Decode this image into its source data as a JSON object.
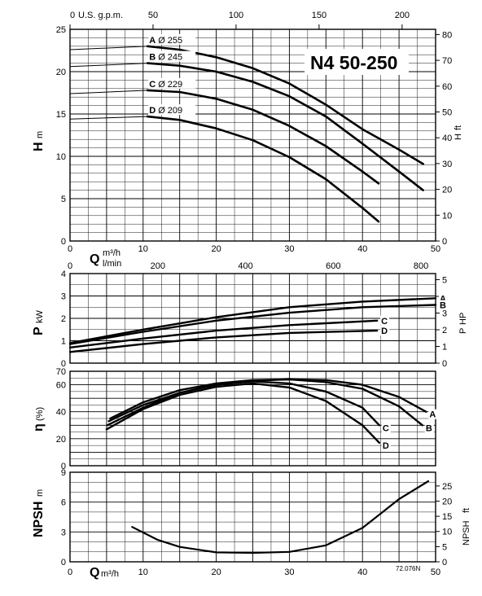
{
  "title": "N4 50-250",
  "code": "72.076N",
  "units": {
    "usgpm": "U.S. g.p.m.",
    "m3h": "m³/h",
    "lmin": "l/min",
    "H_left": "m",
    "H_right": "ft",
    "P_left": "kW",
    "P_right": "HP",
    "eta": "(%)",
    "npsh_left": "m",
    "npsh_right": "ft"
  },
  "labels": {
    "Q": "Q",
    "H": "H",
    "Hft": "H",
    "P": "P",
    "Php": "P",
    "eta": "η",
    "NPSH": "NPSH",
    "NPSHft": "NPSH"
  },
  "curve_labels": {
    "head": [
      {
        "letter": "A",
        "dia": "Ø 255"
      },
      {
        "letter": "B",
        "dia": "Ø 245"
      },
      {
        "letter": "C",
        "dia": "Ø 229"
      },
      {
        "letter": "D",
        "dia": "Ø 209"
      }
    ],
    "power": [
      "A",
      "B",
      "C",
      "D"
    ],
    "eff": [
      "A",
      "B",
      "C",
      "D"
    ]
  },
  "chart_data": [
    {
      "type": "line",
      "ylim": [
        0,
        25
      ],
      "xlim": [
        0,
        50
      ],
      "yticks": [
        "0",
        "5",
        "10",
        "15",
        "20",
        "25"
      ],
      "y2ticks": [
        "0",
        "10",
        "20",
        "30",
        "40",
        "50",
        "60",
        "70",
        "80"
      ],
      "xticks_gpm": [
        "0",
        "50",
        "100",
        "150",
        "200"
      ],
      "series": [
        {
          "name": "A",
          "x": [
            10.6,
            15,
            20,
            25,
            30,
            35,
            40,
            45,
            48.3
          ],
          "y": [
            23.0,
            22.6,
            21.7,
            20.4,
            18.6,
            16.1,
            13.2,
            10.8,
            9.1
          ]
        },
        {
          "name": "B",
          "x": [
            10.6,
            15,
            20,
            25,
            30,
            35,
            40,
            45,
            48.3
          ],
          "y": [
            21.0,
            20.7,
            20.0,
            18.8,
            17.1,
            14.7,
            11.5,
            8.2,
            6.0
          ]
        },
        {
          "name": "C",
          "x": [
            10.6,
            15,
            20,
            25,
            30,
            35,
            40,
            42.2
          ],
          "y": [
            17.8,
            17.6,
            16.8,
            15.5,
            13.6,
            11.2,
            8.2,
            6.8
          ]
        },
        {
          "name": "D",
          "x": [
            10.6,
            15,
            20,
            25,
            30,
            35,
            40,
            42.2
          ],
          "y": [
            14.7,
            14.3,
            13.3,
            11.9,
            9.9,
            7.3,
            3.9,
            2.3
          ]
        }
      ],
      "stubs": [
        {
          "x": [
            0,
            10.6
          ],
          "y": [
            22.6,
            23.0
          ]
        },
        {
          "x": [
            0,
            10.6
          ],
          "y": [
            20.6,
            21.0
          ]
        },
        {
          "x": [
            0,
            10.6
          ],
          "y": [
            17.4,
            17.8
          ]
        },
        {
          "x": [
            0,
            10.6
          ],
          "y": [
            14.4,
            14.7
          ]
        }
      ]
    },
    {
      "type": "line",
      "ylim": [
        0,
        4
      ],
      "xlim": [
        0,
        50
      ],
      "yticks": [
        "0",
        "1",
        "2",
        "3",
        "4"
      ],
      "y2ticks": [
        "0",
        "1",
        "2",
        "3",
        "4",
        "5"
      ],
      "xticks_lmin": [
        "0",
        "200",
        "400",
        "600",
        "800"
      ],
      "series": [
        {
          "name": "A",
          "x": [
            0,
            10,
            20,
            30,
            40,
            50
          ],
          "y": [
            0.9,
            1.5,
            2.05,
            2.5,
            2.75,
            2.9
          ]
        },
        {
          "name": "B",
          "x": [
            0,
            10,
            20,
            30,
            40,
            50
          ],
          "y": [
            0.85,
            1.4,
            1.9,
            2.25,
            2.5,
            2.6
          ]
        },
        {
          "name": "C",
          "x": [
            0,
            10,
            20,
            30,
            42
          ],
          "y": [
            0.7,
            1.1,
            1.45,
            1.7,
            1.9
          ]
        },
        {
          "name": "D",
          "x": [
            0,
            10,
            20,
            30,
            42
          ],
          "y": [
            0.5,
            0.85,
            1.15,
            1.35,
            1.45
          ]
        }
      ]
    },
    {
      "type": "line",
      "ylim": [
        0,
        70
      ],
      "xlim": [
        0,
        50
      ],
      "yticks": [
        "0",
        "20",
        "40",
        "60",
        "70"
      ],
      "series": [
        {
          "name": "A",
          "x": [
            5.5,
            10,
            15,
            20,
            25,
            30,
            35,
            40,
            45,
            48.7
          ],
          "y": [
            35,
            47,
            56,
            61,
            63.5,
            64,
            63.5,
            60,
            51,
            40
          ]
        },
        {
          "name": "B",
          "x": [
            5.3,
            10,
            15,
            20,
            25,
            30,
            35,
            40,
            45,
            48.2
          ],
          "y": [
            33,
            45,
            54,
            60,
            63,
            64,
            62,
            57,
            44,
            30
          ]
        },
        {
          "name": "C",
          "x": [
            5.1,
            10,
            15,
            20,
            25,
            30,
            35,
            40,
            42.3
          ],
          "y": [
            30,
            43,
            54,
            60,
            62.5,
            61,
            55,
            43,
            30
          ]
        },
        {
          "name": "D",
          "x": [
            5.0,
            10,
            15,
            20,
            25,
            30,
            35,
            40,
            42.3
          ],
          "y": [
            27,
            42,
            52.5,
            58.5,
            61,
            58,
            48,
            30,
            17
          ]
        }
      ]
    },
    {
      "type": "line",
      "ylim": [
        0,
        9
      ],
      "xlim": [
        0,
        50
      ],
      "yticks": [
        "0",
        "3",
        "6",
        "9"
      ],
      "y2ticks": [
        "0",
        "5",
        "10",
        "15",
        "20",
        "25"
      ],
      "xticks": [
        "0",
        "10",
        "20",
        "30",
        "40",
        "50"
      ],
      "series": [
        {
          "name": "NPSH",
          "x": [
            8.5,
            12,
            15,
            20,
            25,
            30,
            35,
            40,
            45,
            49
          ],
          "y": [
            3.5,
            2.2,
            1.5,
            0.95,
            0.9,
            1.0,
            1.65,
            3.4,
            6.3,
            8.1
          ]
        }
      ]
    }
  ]
}
